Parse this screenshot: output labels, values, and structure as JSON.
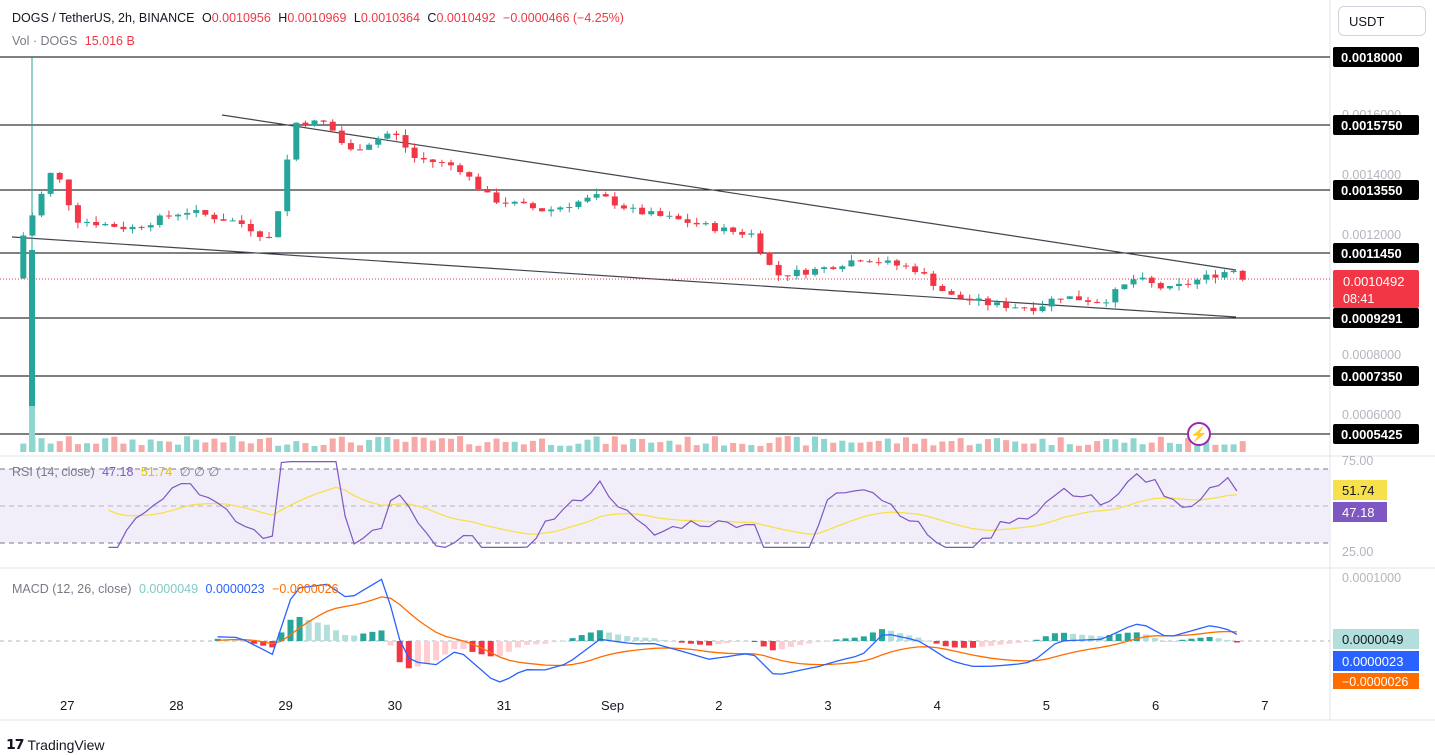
{
  "header": {
    "symbol_line": "DOGS / TetherUS, 2h, BINANCE",
    "open_label": "O",
    "open": "0.0010956",
    "high_label": "H",
    "high": "0.0010969",
    "low_label": "L",
    "low": "0.0010364",
    "close_label": "C",
    "close": "0.0010492",
    "change": "−0.0000466 (−4.25%)",
    "vol_label": "Vol · DOGS",
    "vol_value": "15.016 B"
  },
  "currency_button": "USDT",
  "rsi_legend": {
    "name": "RSI (14, close)",
    "v1": "47.18",
    "v2": "51.74",
    "extra": "∅ ∅ ∅"
  },
  "macd_legend": {
    "name": "MACD (12, 26, close)",
    "hist": "0.0000049",
    "macd": "0.0000023",
    "signal": "−0.0000026"
  },
  "footer": {
    "brand": "TradingView"
  },
  "colors": {
    "up": "#26a69a",
    "down": "#f23645",
    "rsi": "#7e57c2",
    "rsi_ma": "#f7e04b",
    "macd": "#2962ff",
    "signal": "#ff6d00"
  },
  "chart_data": {
    "type": "candlestick",
    "x_labels": [
      "27",
      "28",
      "29",
      "30",
      "31",
      "Sep",
      "2",
      "3",
      "4",
      "5",
      "6",
      "7"
    ],
    "price_axis_ticks": [
      "0.0016000",
      "0.0014000",
      "0.0012000",
      "0.0008000",
      "0.0006000"
    ],
    "price_range": [
      0.00045,
      0.00195
    ],
    "horizontal_levels": [
      "0.0018000",
      "0.0015750",
      "0.0013550",
      "0.0011450",
      "0.0009291",
      "0.0007350",
      "0.0005425"
    ],
    "current_price": {
      "value": "0.0010492",
      "countdown": "08:41"
    },
    "trendlines": [
      {
        "from": [
          "Aug 28 12:00",
          0.00158
        ],
        "to": [
          "Sep 6 18:00",
          0.00111
        ]
      },
      {
        "from": [
          "Aug 26 18:00",
          0.0012
        ],
        "to": [
          "Sep 6 18:00",
          0.00094
        ]
      }
    ],
    "close_path": [
      [
        0.001,
        0.00118
      ],
      [
        0.3,
        0.00143
      ],
      [
        0.5,
        0.00125
      ],
      [
        1.0,
        0.00122
      ],
      [
        1.5,
        0.00128
      ],
      [
        2.0,
        0.00124
      ],
      [
        2.3,
        0.00118
      ],
      [
        2.5,
        0.00158
      ],
      [
        2.8,
        0.00158
      ],
      [
        3.0,
        0.00148
      ],
      [
        3.4,
        0.00155
      ],
      [
        3.6,
        0.00146
      ],
      [
        4.0,
        0.00143
      ],
      [
        4.3,
        0.00132
      ],
      [
        4.8,
        0.00128
      ],
      [
        5.3,
        0.00133
      ],
      [
        5.6,
        0.00128
      ],
      [
        6.0,
        0.00125
      ],
      [
        6.5,
        0.00121
      ],
      [
        6.7,
        0.0012
      ],
      [
        6.9,
        0.00106
      ],
      [
        7.3,
        0.00108
      ],
      [
        7.7,
        0.00112
      ],
      [
        8.2,
        0.00108
      ],
      [
        8.5,
        0.00099
      ],
      [
        8.9,
        0.00096
      ],
      [
        9.3,
        0.00095
      ],
      [
        9.5,
        0.00099
      ],
      [
        9.9,
        0.00097
      ],
      [
        10.2,
        0.00105
      ],
      [
        10.5,
        0.00101
      ],
      [
        10.9,
        0.00106
      ],
      [
        11.1,
        0.00108
      ],
      [
        11.2,
        0.00105
      ]
    ],
    "rsi": {
      "upper": "75.00",
      "lower": "25.00",
      "value": "47.18",
      "ma": "51.74"
    },
    "macd": {
      "zero_axis_tick": "0.0001000",
      "hist": "0.0000049",
      "macd": "0.0000023",
      "signal": "−0.0000026"
    }
  }
}
